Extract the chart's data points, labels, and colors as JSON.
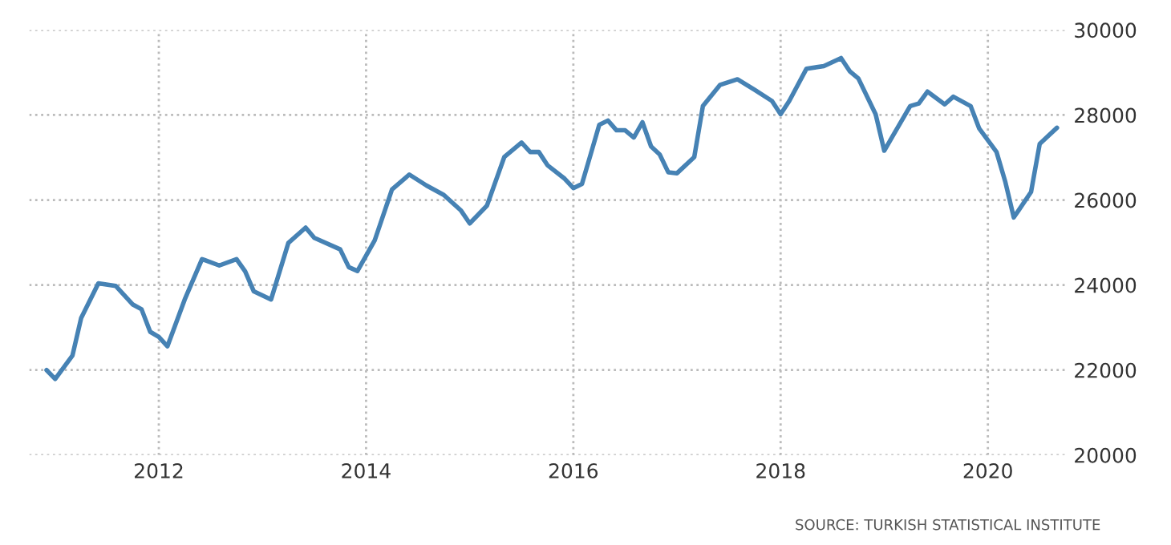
{
  "chart_data": {
    "type": "line",
    "x": [
      "2010-12",
      "2011-01",
      "2011-03",
      "2011-04",
      "2011-06",
      "2011-08",
      "2011-10",
      "2011-11",
      "2011-12",
      "2012-01",
      "2012-02",
      "2012-04",
      "2012-06",
      "2012-08",
      "2012-10",
      "2012-11",
      "2012-12",
      "2013-02",
      "2013-04",
      "2013-06",
      "2013-07",
      "2013-10",
      "2013-11",
      "2013-12",
      "2014-02",
      "2014-04",
      "2014-06",
      "2014-08",
      "2014-10",
      "2014-12",
      "2015-01",
      "2015-03",
      "2015-05",
      "2015-07",
      "2015-08",
      "2015-09",
      "2015-10",
      "2015-12",
      "2016-01",
      "2016-02",
      "2016-03",
      "2016-04",
      "2016-05",
      "2016-06",
      "2016-07",
      "2016-08",
      "2016-09",
      "2016-10",
      "2016-11",
      "2016-12",
      "2017-01",
      "2017-03",
      "2017-04",
      "2017-06",
      "2017-08",
      "2017-10",
      "2017-12",
      "2018-01",
      "2018-02",
      "2018-04",
      "2018-06",
      "2018-08",
      "2018-09",
      "2018-10",
      "2018-12",
      "2019-01",
      "2019-02",
      "2019-04",
      "2019-05",
      "2019-06",
      "2019-08",
      "2019-09",
      "2019-11",
      "2019-12",
      "2020-02",
      "2020-03",
      "2020-04",
      "2020-06",
      "2020-07",
      "2020-09"
    ],
    "series": [
      {
        "color": "#4682b4",
        "values": [
          22000,
          21790,
          22340,
          23220,
          24040,
          23980,
          23540,
          23430,
          22900,
          22780,
          22560,
          23660,
          24610,
          24460,
          24610,
          24320,
          23850,
          23660,
          24990,
          25350,
          25110,
          24840,
          24420,
          24330,
          25050,
          26250,
          26600,
          26340,
          26120,
          25750,
          25450,
          25870,
          27010,
          27350,
          27130,
          27130,
          26820,
          26500,
          26280,
          26380,
          27070,
          27770,
          27870,
          27640,
          27640,
          27470,
          27830,
          27260,
          27070,
          26650,
          26630,
          27010,
          28210,
          28710,
          28840,
          28590,
          28330,
          28020,
          28330,
          29090,
          29150,
          29340,
          29030,
          28860,
          28020,
          27160,
          27510,
          28210,
          28270,
          28550,
          28250,
          28430,
          28210,
          27680,
          27130,
          26440,
          25590,
          26190,
          27320,
          27700
        ]
      }
    ],
    "xlim": [
      "2010-10",
      "2020-10"
    ],
    "xticks": [
      "2012",
      "2014",
      "2016",
      "2018",
      "2020"
    ],
    "ylim": [
      20000,
      30000
    ],
    "yticks": [
      20000,
      22000,
      24000,
      26000,
      28000,
      30000
    ],
    "grid": true,
    "annotations": [
      "SOURCE: TURKISH STATISTICAL INSTITUTE"
    ]
  }
}
